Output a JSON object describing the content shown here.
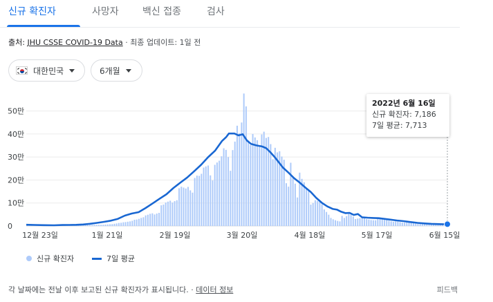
{
  "tabs": [
    {
      "label": "신규 확진자",
      "active": true
    },
    {
      "label": "사망자",
      "active": false
    },
    {
      "label": "백신 접종",
      "active": false
    },
    {
      "label": "검사",
      "active": false
    }
  ],
  "source": {
    "prefix": "출처: ",
    "link": "JHU CSSE COVID-19 Data",
    "suffix": " · 최종 업데이트: 1일 전"
  },
  "filters": {
    "country": "대한민국",
    "period": "6개월"
  },
  "chart_data": {
    "type": "bar",
    "x_tick_labels": [
      "12월 23일",
      "1월 21일",
      "2월 19일",
      "3월 20일",
      "4월 18일",
      "5월 17일",
      "6월 15일"
    ],
    "y_tick_labels": [
      "0",
      "10만",
      "20만",
      "30만",
      "40만",
      "50만"
    ],
    "ylim": [
      0,
      580000
    ],
    "series": [
      {
        "name": "신규 확진자",
        "color": "#aecbfa",
        "values": [
          5400,
          6600,
          6200,
          5600,
          5200,
          4800,
          4600,
          4300,
          3800,
          3900,
          4000,
          4100,
          3900,
          3800,
          3700,
          3600,
          3500,
          3200,
          3000,
          2800,
          3100,
          3300,
          3400,
          3600,
          3800,
          4000,
          4200,
          4100,
          4400,
          4600,
          4800,
          5000,
          5200,
          5300,
          5500,
          6000,
          6800,
          7500,
          8000,
          9500,
          11000,
          13000,
          14000,
          16000,
          17000,
          18500,
          20000,
          22500,
          27000,
          28000,
          31000,
          35000,
          38000,
          46000,
          49000,
          53000,
          55000,
          50000,
          54000,
          57000,
          90000,
          93000,
          102000,
          106000,
          110000,
          102000,
          108000,
          112000,
          164000,
          171000,
          167000,
          163000,
          170000,
          155000,
          145000,
          209000,
          219000,
          218000,
          227000,
          254000,
          259000,
          263000,
          220000,
          198000,
          266000,
          276000,
          284000,
          303000,
          338000,
          331000,
          300000,
          240000,
          330000,
          367000,
          436000,
          403000,
          450000,
          576000,
          520000,
          372000,
          352000,
          400000,
          385000,
          373000,
          345000,
          398000,
          410000,
          383000,
          387000,
          356000,
          290000,
          340000,
          320000,
          325000,
          302000,
          288000,
          186000,
          171000,
          275000,
          210000,
          184000,
          124000,
          232000,
          205000,
          190000,
          164000,
          155000,
          93000,
          100000,
          112000,
          109000,
          106000,
          95000,
          72000,
          61000,
          49000,
          35000,
          29000,
          25000,
          22000,
          20000,
          44000,
          35000,
          43000,
          60000,
          49000,
          41000,
          30000,
          32000,
          34000,
          38000,
          33000,
          30000,
          28000,
          26000,
          25000,
          25000,
          35000,
          33000,
          30000,
          28000,
          26000,
          23000,
          20000,
          18000,
          20000,
          19000,
          17000,
          15000,
          15000,
          18000,
          16000,
          14000,
          12500,
          11000,
          10000,
          9500,
          12000,
          11000,
          9000,
          7800,
          7000,
          6500,
          6000,
          8000,
          8500,
          7300,
          7500,
          7200
        ]
      },
      {
        "name": "7일 평균",
        "color": "#1967d2",
        "points": [
          [
            0,
            5300
          ],
          [
            12,
            4400
          ],
          [
            25,
            3500
          ],
          [
            40,
            3000
          ],
          [
            52,
            4100
          ],
          [
            62,
            4500
          ],
          [
            72,
            5200
          ],
          [
            82,
            6600
          ],
          [
            92,
            9500
          ],
          [
            102,
            13500
          ],
          [
            112,
            18000
          ],
          [
            122,
            23000
          ],
          [
            132,
            31000
          ],
          [
            142,
            45000
          ],
          [
            152,
            54000
          ],
          [
            162,
            60000
          ],
          [
            172,
            78000
          ],
          [
            182,
            98000
          ],
          [
            192,
            118000
          ],
          [
            202,
            138000
          ],
          [
            212,
            165000
          ],
          [
            222,
            188000
          ],
          [
            232,
            211000
          ],
          [
            242,
            238000
          ],
          [
            252,
            266000
          ],
          [
            262,
            299000
          ],
          [
            272,
            327000
          ],
          [
            282,
            369000
          ],
          [
            288,
            386000
          ],
          [
            292,
            402000
          ],
          [
            300,
            402000
          ],
          [
            306,
            394000
          ],
          [
            312,
            399000
          ],
          [
            318,
            372000
          ],
          [
            324,
            357000
          ],
          [
            332,
            350000
          ],
          [
            340,
            346000
          ],
          [
            346,
            338000
          ],
          [
            352,
            320000
          ],
          [
            358,
            300000
          ],
          [
            364,
            277000
          ],
          [
            370,
            254000
          ],
          [
            378,
            232000
          ],
          [
            386,
            208000
          ],
          [
            394,
            189000
          ],
          [
            402,
            168000
          ],
          [
            410,
            148000
          ],
          [
            418,
            122000
          ],
          [
            426,
            101000
          ],
          [
            434,
            85000
          ],
          [
            442,
            74000
          ],
          [
            448,
            71000
          ],
          [
            454,
            62000
          ],
          [
            460,
            56000
          ],
          [
            466,
            57000
          ],
          [
            472,
            48000
          ],
          [
            478,
            52000
          ],
          [
            484,
            38000
          ],
          [
            492,
            36000
          ],
          [
            500,
            35000
          ],
          [
            508,
            34000
          ],
          [
            516,
            31000
          ],
          [
            524,
            28000
          ],
          [
            534,
            24000
          ],
          [
            544,
            21000
          ],
          [
            554,
            17000
          ],
          [
            564,
            13500
          ],
          [
            574,
            11000
          ],
          [
            584,
            9400
          ],
          [
            592,
            8500
          ],
          [
            600,
            7900
          ],
          [
            607,
            7713
          ]
        ]
      }
    ],
    "tooltip": {
      "date": "2022년 6월 16일",
      "cases_label": "신규 확진자: 7,186",
      "avg_label": "7일 평균: 7,713"
    }
  },
  "legend": {
    "cases": "신규 확진자",
    "avg": "7일 평균"
  },
  "footer": {
    "note": "각 날짜에는 전날 이후 보고된 신규 확진자가 표시됩니다. · ",
    "link": "데이터 정보",
    "feedback": "피드백"
  }
}
